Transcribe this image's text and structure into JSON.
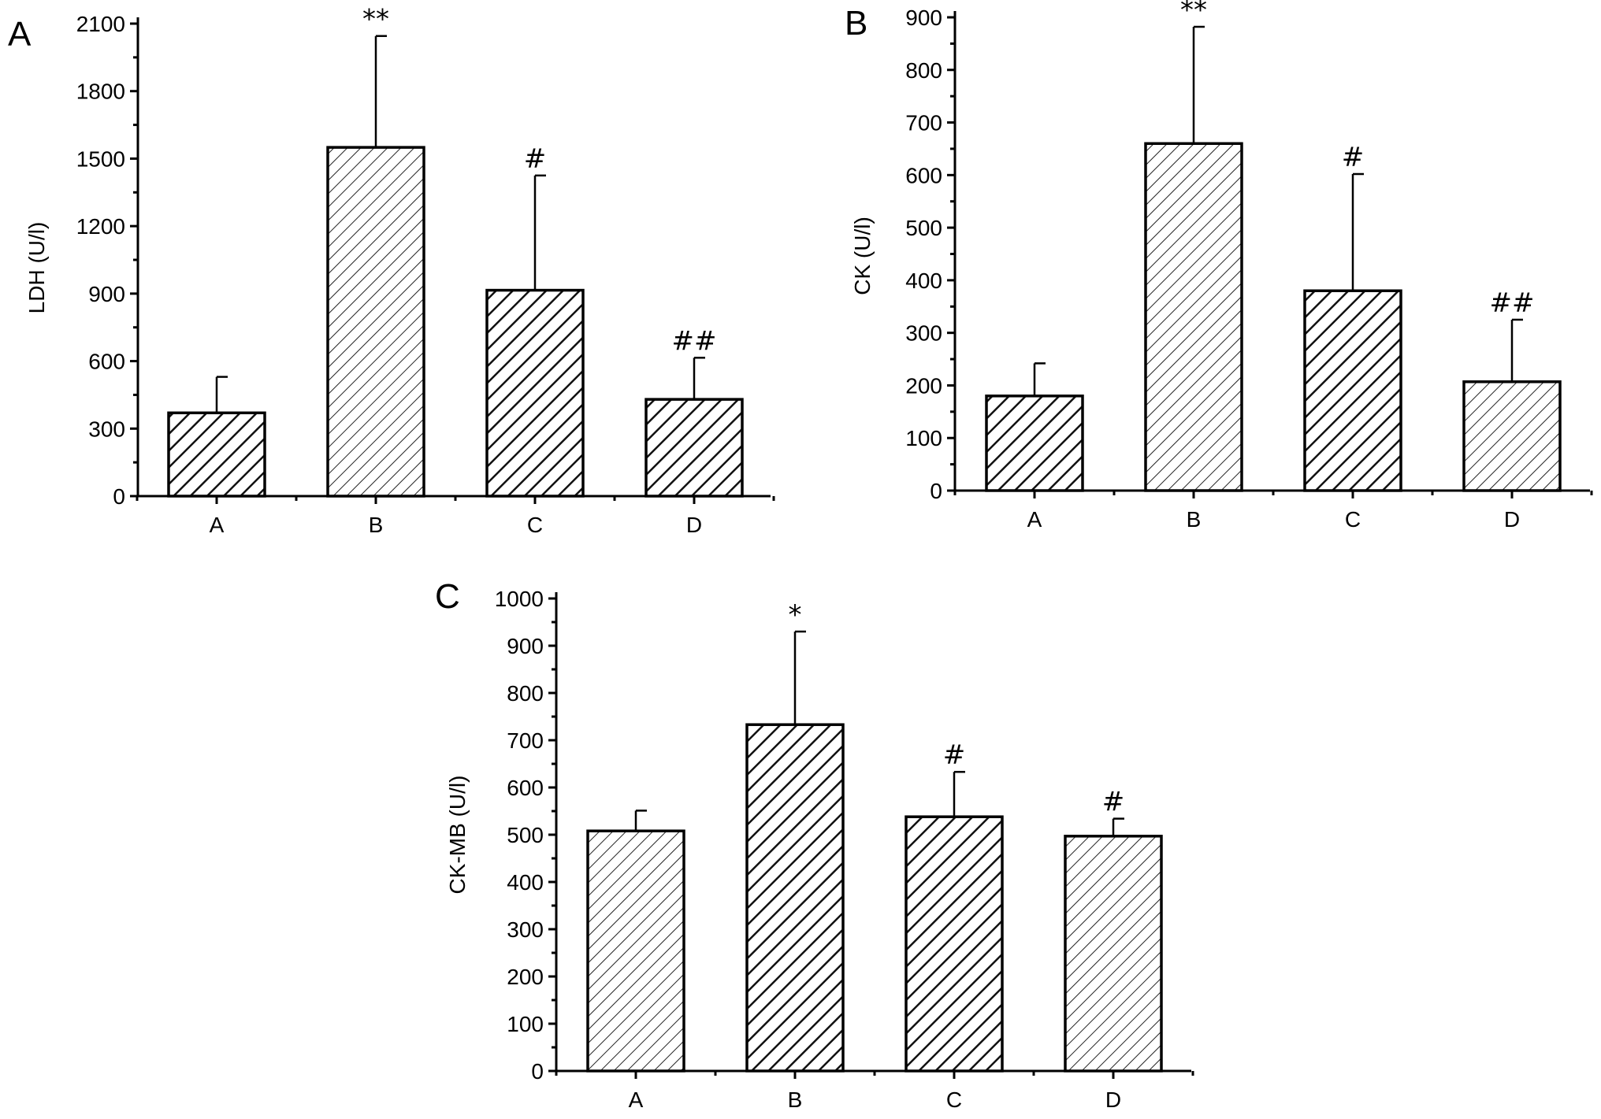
{
  "chart_data": [
    {
      "type": "bar",
      "panel": "A",
      "categories": [
        "A",
        "B",
        "C",
        "D"
      ],
      "values": [
        370,
        1550,
        915,
        430
      ],
      "errors": [
        160,
        495,
        510,
        185
      ],
      "significance": [
        "",
        "**",
        "#",
        "##"
      ],
      "patterns": [
        "dense",
        "sparse",
        "dense",
        "dense"
      ],
      "ylabel": "LDH (U/l)",
      "ylim": [
        0,
        2100
      ],
      "yticks": [
        0,
        300,
        600,
        900,
        1200,
        1500,
        1800,
        2100
      ],
      "grid": false
    },
    {
      "type": "bar",
      "panel": "B",
      "categories": [
        "A",
        "B",
        "C",
        "D"
      ],
      "values": [
        180,
        660,
        380,
        207
      ],
      "errors": [
        62,
        222,
        222,
        118
      ],
      "significance": [
        "",
        "**",
        "#",
        "##"
      ],
      "patterns": [
        "dense",
        "sparse",
        "dense",
        "sparse"
      ],
      "ylabel": "CK (U/l)",
      "ylim": [
        0,
        900
      ],
      "yticks": [
        0,
        100,
        200,
        300,
        400,
        500,
        600,
        700,
        800,
        900
      ],
      "grid": false
    },
    {
      "type": "bar",
      "panel": "C",
      "categories": [
        "A",
        "B",
        "C",
        "D"
      ],
      "values": [
        508,
        733,
        538,
        497
      ],
      "errors": [
        43,
        197,
        95,
        37
      ],
      "significance": [
        "",
        "*",
        "#",
        "#"
      ],
      "patterns": [
        "sparse",
        "dense",
        "dense",
        "sparse"
      ],
      "ylabel": "CK-MB (U/l)",
      "ylim": [
        0,
        1000
      ],
      "yticks": [
        0,
        100,
        200,
        300,
        400,
        500,
        600,
        700,
        800,
        900,
        1000
      ],
      "grid": false
    }
  ]
}
